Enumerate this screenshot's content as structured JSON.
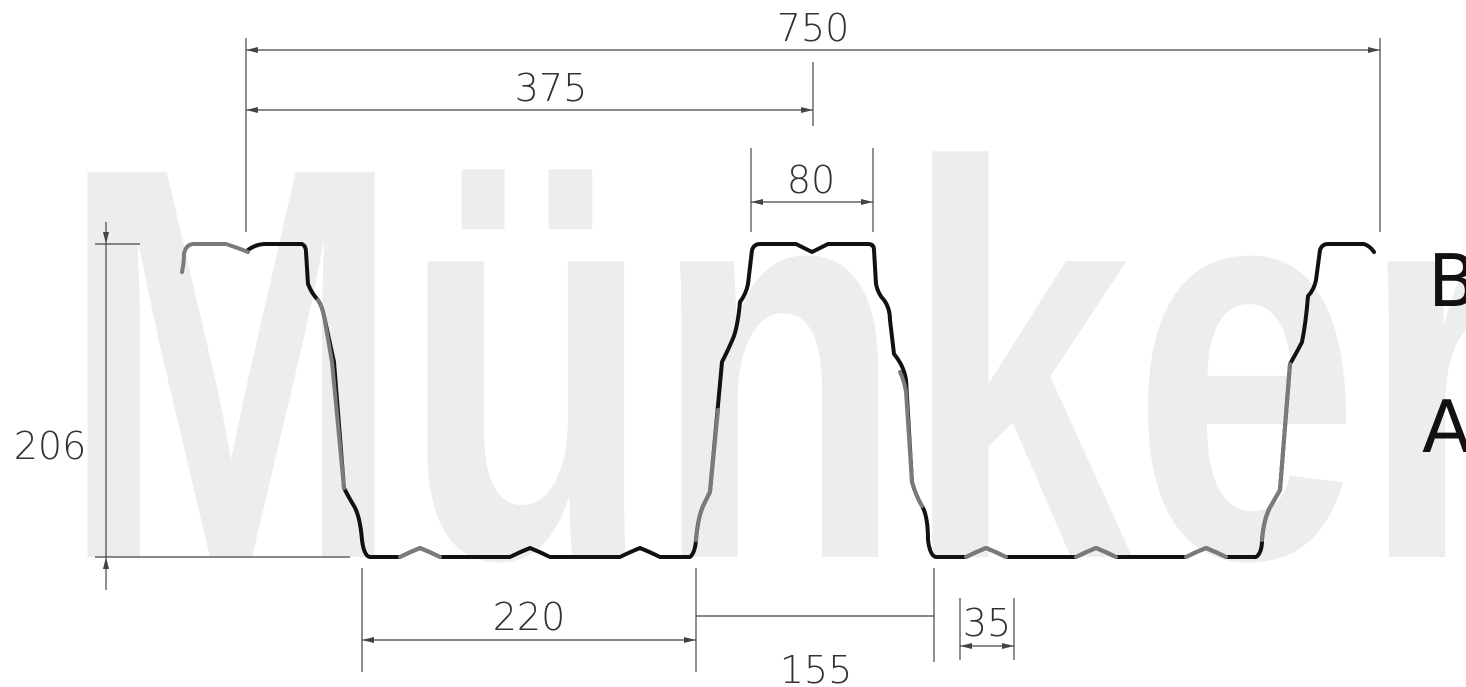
{
  "watermark": {
    "text": "Münker",
    "color": "#ecedee"
  },
  "dimensions": {
    "total_width": "750",
    "half_width": "375",
    "top_flange": "80",
    "height": "206",
    "bottom_flange": "220",
    "web_spacing": "155",
    "stiffener": "35"
  },
  "side_letters": {
    "b": "B",
    "a": "A"
  },
  "colors": {
    "profile_primary": "#111111",
    "profile_overlap": "#7a7a7a",
    "dimension_lines": "#444444"
  }
}
